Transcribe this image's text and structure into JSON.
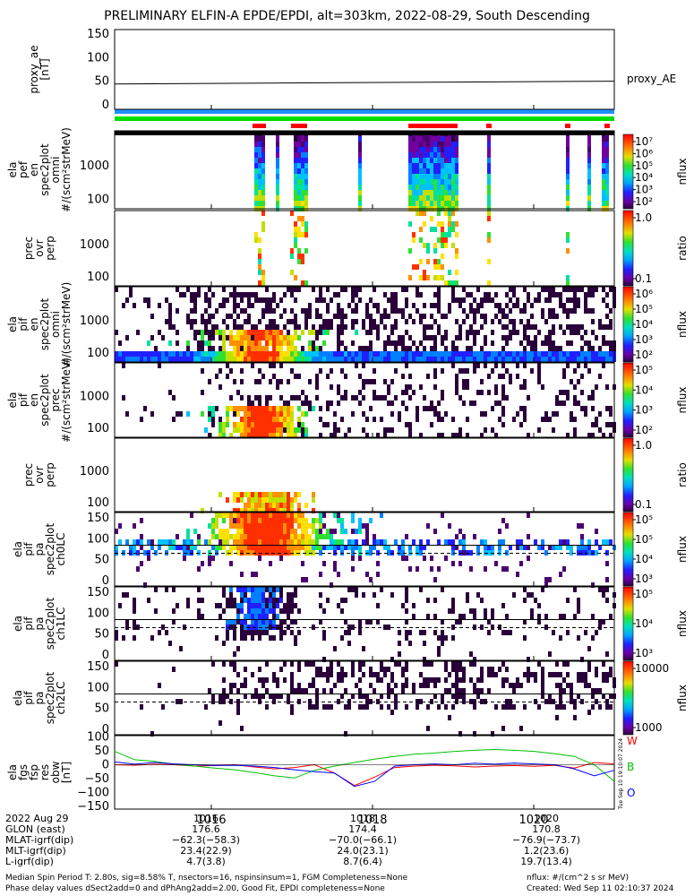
{
  "title": "PRELIMINARY ELFIN-A EPDE/EPDI, alt=303km, 2022-08-29, South Descending",
  "chart_data": {
    "type": "heatmap",
    "x_ticks": [
      "1016",
      "1018",
      "1020"
    ],
    "time_axis": {
      "start_minute": 1014.8,
      "end_minute": 1021.0,
      "tick_values": [
        1016,
        1018,
        1020
      ]
    },
    "colors": {
      "line_w": "#ff0000",
      "line_b": "#00c000",
      "line_o": "#0000ff",
      "bar_blue": "#1e90ff",
      "bar_green": "#00dd00",
      "bar_red": "#ff0000",
      "bar_black": "#000000"
    },
    "panels": [
      {
        "id": "proxy_ae",
        "ylabel": [
          "proxy_ae",
          "[nT]"
        ],
        "yticks": [
          "150",
          "100",
          "50",
          "0"
        ],
        "ytick_values": [
          150,
          100,
          50,
          0
        ],
        "ylim": [
          -10,
          160
        ],
        "series_label": "proxy_AE",
        "line_start": 44,
        "line_end": 50
      },
      {
        "id": "ela_pef_en_spec2plot_omni",
        "ylabel": [
          "ela",
          "pef",
          "en",
          "spec2plot",
          "omni",
          "#/(scm²strMeV)"
        ],
        "yticks": [
          "1000",
          "100"
        ],
        "colorbar": {
          "label": "nflux",
          "ticks": [
            "10⁷",
            "10⁶",
            "10⁵",
            "10⁴",
            "10³",
            "10²"
          ]
        }
      },
      {
        "id": "prec_ovr_perp_e",
        "ylabel": [
          "prec",
          "ovr",
          "perp"
        ],
        "yticks": [
          "1000",
          "100"
        ],
        "colorbar": {
          "label": "ratio",
          "ticks": [
            "1.0",
            "0.1"
          ]
        }
      },
      {
        "id": "ela_pif_en_spec2plot_omni",
        "ylabel": [
          "ela",
          "pif",
          "en",
          "spec2plot",
          "omni",
          "#/(scm²strMeV)"
        ],
        "yticks": [
          "1000",
          "100"
        ],
        "colorbar": {
          "label": "nflux",
          "ticks": [
            "10⁶",
            "10⁵",
            "10⁴",
            "10³",
            "10²"
          ]
        }
      },
      {
        "id": "ela_pif_en_spec2plot_prec",
        "ylabel": [
          "ela",
          "pif",
          "en",
          "spec2plot",
          "prec",
          "#/(scm²strMeV)"
        ],
        "yticks": [
          "1000",
          "100"
        ],
        "colorbar": {
          "label": "nflux",
          "ticks": [
            "10⁵",
            "10⁴",
            "10³",
            "10²"
          ]
        }
      },
      {
        "id": "prec_ovr_perp_i",
        "ylabel": [
          "prec",
          "ovr",
          "perp"
        ],
        "yticks": [
          "1000",
          "100"
        ],
        "colorbar": {
          "label": "ratio",
          "ticks": [
            "1.0",
            "0.1"
          ]
        }
      },
      {
        "id": "ela_pif_pa_ch0LC",
        "ylabel": [
          "ela",
          "pif",
          "pa",
          "spec2plot",
          "ch0LC"
        ],
        "yticks": [
          "150",
          "100",
          "50",
          "0"
        ],
        "colorbar": {
          "label": "nflux",
          "ticks": [
            "10⁵",
            "10⁵",
            "10⁴",
            "10³"
          ]
        }
      },
      {
        "id": "ela_pif_pa_ch1LC",
        "ylabel": [
          "ela",
          "pif",
          "pa",
          "spec2plot",
          "ch1LC"
        ],
        "yticks": [
          "150",
          "100",
          "50",
          "0"
        ],
        "colorbar": {
          "label": "nflux",
          "ticks": [
            "10⁵",
            "10⁴",
            "10³"
          ]
        }
      },
      {
        "id": "ela_pif_pa_ch2LC",
        "ylabel": [
          "ela",
          "pif",
          "pa",
          "spec2plot",
          "ch2LC"
        ],
        "yticks": [
          "150",
          "100",
          "50",
          "0"
        ],
        "colorbar": {
          "label": "nflux",
          "ticks": [
            "10000",
            "1000"
          ]
        }
      },
      {
        "id": "ela_fgs_fsp_res_obw",
        "ylabel": [
          "ela",
          "fgs",
          "fsp",
          "res",
          "obw",
          "[nT]"
        ],
        "yticks": [
          "100",
          "50",
          "0",
          "−50",
          "−100",
          "−150"
        ],
        "ytick_values": [
          100,
          50,
          0,
          -50,
          -100,
          -150
        ],
        "ylim": [
          -160,
          105
        ],
        "legend": [
          "W",
          "B",
          "O"
        ],
        "series": [
          {
            "name": "W",
            "values": [
              0,
              -2,
              2,
              0,
              -5,
              -3,
              0,
              -8,
              -15,
              -10,
              0,
              -30,
              -75,
              -45,
              -10,
              -5,
              -2,
              -4,
              -8,
              -5,
              -3,
              -6,
              -2,
              -12,
              8,
              3
            ]
          },
          {
            "name": "B",
            "values": [
              48,
              18,
              12,
              2,
              -5,
              -12,
              -18,
              -28,
              -40,
              -48,
              -20,
              -5,
              8,
              20,
              30,
              38,
              42,
              48,
              52,
              55,
              52,
              48,
              40,
              30,
              0,
              -60
            ]
          },
          {
            "name": "O",
            "values": [
              10,
              2,
              8,
              3,
              0,
              -3,
              -2,
              -5,
              -10,
              -18,
              -25,
              -30,
              -78,
              -60,
              -5,
              0,
              3,
              0,
              5,
              2,
              6,
              3,
              0,
              -15,
              -40,
              -20
            ]
          }
        ]
      }
    ]
  },
  "footer": {
    "row_labels": [
      "2022 Aug 29",
      "GLON (east)",
      "MLAT-igrf(dip)",
      "MLT-igrf(dip)",
      "L-igrf(dip)"
    ],
    "columns": [
      [
        "1016",
        "176.6",
        "−62.3(−58.3)",
        "23.4(22.9)",
        "4.7(3.8)"
      ],
      [
        "1018",
        "174.4",
        "−70.0(−66.1)",
        "24.0(23.1)",
        "8.7(6.4)"
      ],
      [
        "1020",
        "170.8",
        "−76.9(−73.7)",
        "1.2(23.6)",
        "19.7(13.4)"
      ]
    ],
    "line1": "Median Spin Period T: 2.80s, sig=8.58% T, nsectors=16, nspinsinsum=1, FGM Completeness=None",
    "line2": "Phase delay values dSect2add=0 and dPhAng2add=2.00, Good Fit, EPDI completeness=None",
    "units": "nflux: #/(cm^2 s sr MeV)",
    "created": "Created: Wed Sep 11 02:10:37 2024",
    "vertical_stamp": "Tue Sep 10 19:10:07 2024"
  }
}
